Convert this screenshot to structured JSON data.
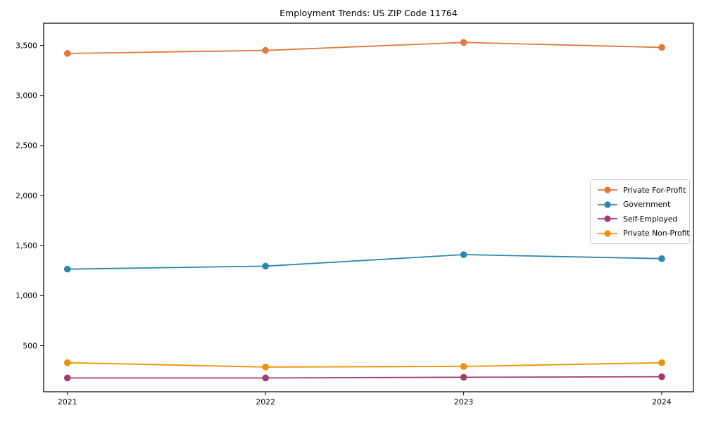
{
  "chart_data": {
    "type": "line",
    "title": "Employment Trends: US ZIP Code 11764",
    "xlabel": "",
    "ylabel": "",
    "x": [
      2021,
      2022,
      2023,
      2024
    ],
    "xtick_labels": [
      "2021",
      "2022",
      "2023",
      "2024"
    ],
    "series": [
      {
        "name": "Private For-Profit",
        "color": "#E0793C",
        "values": [
          3420,
          3450,
          3530,
          3480
        ]
      },
      {
        "name": "Government",
        "color": "#2E86AB",
        "values": [
          1265,
          1295,
          1410,
          1370
        ]
      },
      {
        "name": "Self-Employed",
        "color": "#A23B72",
        "values": [
          178,
          178,
          185,
          190
        ]
      },
      {
        "name": "Private Non-Profit",
        "color": "#F18F01",
        "values": [
          330,
          287,
          293,
          330
        ]
      }
    ],
    "yticks": [
      500,
      1000,
      1500,
      2000,
      2500,
      3000,
      3500
    ],
    "ytick_labels": [
      "500",
      "1,000",
      "1,500",
      "2,000",
      "2,500",
      "3,000",
      "3,500"
    ],
    "ylim": [
      40,
      3722
    ],
    "xlim": [
      2020.88,
      2024.16
    ],
    "grid": false,
    "legend_position": "center right",
    "marker": "circle",
    "frame_color": "#000000",
    "background_color": "#ffffff"
  }
}
